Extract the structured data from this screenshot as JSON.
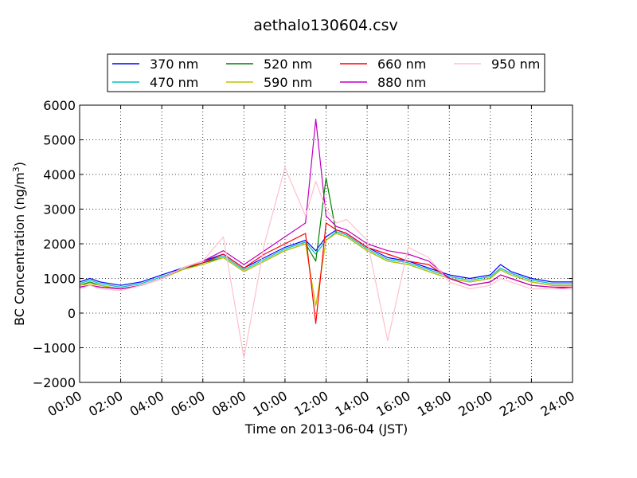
{
  "chart_data": {
    "type": "line",
    "title": "aethalo130604.csv",
    "xlabel": "Time on 2013-06-04 (JST)",
    "ylabel": "BC Concentration (ng/m³)",
    "ylabel_parts": {
      "main": "BC Concentration (ng/m",
      "sup": "3",
      "close": ")"
    },
    "xlim_hours": [
      0,
      24
    ],
    "ylim": [
      -2000,
      6000
    ],
    "x_ticks": [
      "00:00",
      "02:00",
      "04:00",
      "06:00",
      "08:00",
      "10:00",
      "12:00",
      "14:00",
      "16:00",
      "18:00",
      "20:00",
      "22:00",
      "24:00"
    ],
    "y_ticks": [
      "6000",
      "5000",
      "4000",
      "3000",
      "2000",
      "1000",
      "0",
      "−1000",
      "−2000"
    ],
    "grid": true,
    "legend_position": "top",
    "series": [
      {
        "name": "370 nm",
        "color": "#0000ff",
        "x": [
          0,
          0.5,
          1,
          2,
          3,
          4,
          5,
          6,
          7,
          8,
          9,
          10,
          11,
          11.5,
          12,
          12.5,
          13,
          14,
          15,
          16,
          17,
          18,
          19,
          20,
          20.5,
          21,
          22,
          23,
          24
        ],
        "values": [
          900,
          1000,
          900,
          800,
          900,
          1100,
          1300,
          1500,
          1700,
          1300,
          1600,
          1900,
          2100,
          1800,
          2200,
          2400,
          2300,
          1900,
          1600,
          1500,
          1300,
          1100,
          1000,
          1100,
          1400,
          1200,
          1000,
          900,
          900
        ]
      },
      {
        "name": "470 nm",
        "color": "#00bfbf",
        "x": [
          0,
          0.5,
          1,
          2,
          3,
          4,
          5,
          6,
          7,
          8,
          9,
          10,
          11,
          11.5,
          12,
          12.5,
          13,
          14,
          15,
          16,
          17,
          18,
          19,
          20,
          20.5,
          21,
          22,
          23,
          24
        ],
        "values": [
          850,
          950,
          850,
          750,
          850,
          1050,
          1250,
          1450,
          1650,
          1250,
          1550,
          1850,
          2050,
          1700,
          2100,
          2350,
          2250,
          1850,
          1550,
          1450,
          1250,
          1050,
          950,
          1050,
          1300,
          1150,
          950,
          850,
          850
        ]
      },
      {
        "name": "520 nm",
        "color": "#008000",
        "x": [
          0,
          0.5,
          1,
          2,
          3,
          4,
          5,
          6,
          7,
          8,
          9,
          10,
          11,
          11.5,
          12,
          12.5,
          13,
          14,
          15,
          16,
          17,
          18,
          19,
          20,
          20.5,
          21,
          22,
          23,
          24
        ],
        "values": [
          800,
          900,
          800,
          700,
          800,
          1000,
          1250,
          1450,
          1600,
          1200,
          1500,
          1800,
          2000,
          1500,
          3900,
          2300,
          2200,
          1800,
          1500,
          1400,
          1200,
          1000,
          900,
          1000,
          1250,
          1100,
          900,
          800,
          800
        ]
      },
      {
        "name": "590 nm",
        "color": "#bfbf00",
        "x": [
          0,
          0.5,
          1,
          2,
          3,
          4,
          5,
          6,
          7,
          8,
          9,
          10,
          11,
          11.5,
          12,
          12.5,
          13,
          14,
          15,
          16,
          17,
          18,
          19,
          20,
          20.5,
          21,
          22,
          23,
          24
        ],
        "values": [
          800,
          850,
          800,
          700,
          800,
          1000,
          1250,
          1400,
          1600,
          1200,
          1500,
          1800,
          2000,
          200,
          2100,
          2300,
          2200,
          1800,
          1500,
          1400,
          1200,
          1000,
          900,
          1000,
          1250,
          1100,
          900,
          800,
          800
        ]
      },
      {
        "name": "660 nm",
        "color": "#ff0000",
        "x": [
          0,
          0.5,
          1,
          2,
          3,
          4,
          5,
          6,
          7,
          8,
          9,
          10,
          11,
          11.5,
          12,
          12.5,
          13,
          14,
          15,
          16,
          17,
          18,
          19,
          20,
          20.5,
          21,
          22,
          23,
          24
        ],
        "values": [
          750,
          800,
          750,
          700,
          800,
          1000,
          1300,
          1450,
          1700,
          1300,
          1700,
          2000,
          2300,
          -300,
          2600,
          2400,
          2300,
          1900,
          1700,
          1500,
          1400,
          1000,
          800,
          900,
          1100,
          1000,
          800,
          750,
          750
        ]
      },
      {
        "name": "880 nm",
        "color": "#bf00bf",
        "x": [
          0,
          0.5,
          1,
          2,
          3,
          4,
          5,
          6,
          7,
          8,
          9,
          10,
          11,
          11.5,
          12,
          12.5,
          13,
          14,
          15,
          16,
          17,
          18,
          19,
          20,
          20.5,
          21,
          22,
          23,
          24
        ],
        "values": [
          750,
          800,
          750,
          700,
          800,
          1000,
          1300,
          1500,
          1800,
          1400,
          1800,
          2200,
          2600,
          5600,
          2800,
          2500,
          2400,
          2000,
          1800,
          1700,
          1500,
          1000,
          800,
          900,
          1100,
          1000,
          800,
          750,
          700
        ]
      },
      {
        "name": "950 nm",
        "color": "#ffc0cb",
        "x": [
          0,
          0.5,
          1,
          2,
          3,
          4,
          5,
          6,
          7,
          8,
          9,
          10,
          11,
          11.5,
          12,
          12.5,
          13,
          14,
          15,
          16,
          17,
          18,
          19,
          20,
          20.5,
          21,
          22,
          23,
          24
        ],
        "values": [
          700,
          800,
          700,
          650,
          800,
          1000,
          1300,
          1500,
          2200,
          -1300,
          2000,
          4200,
          2800,
          3800,
          3000,
          2600,
          2700,
          2100,
          -800,
          1900,
          1600,
          900,
          700,
          800,
          1000,
          900,
          700,
          700,
          700
        ]
      }
    ]
  }
}
